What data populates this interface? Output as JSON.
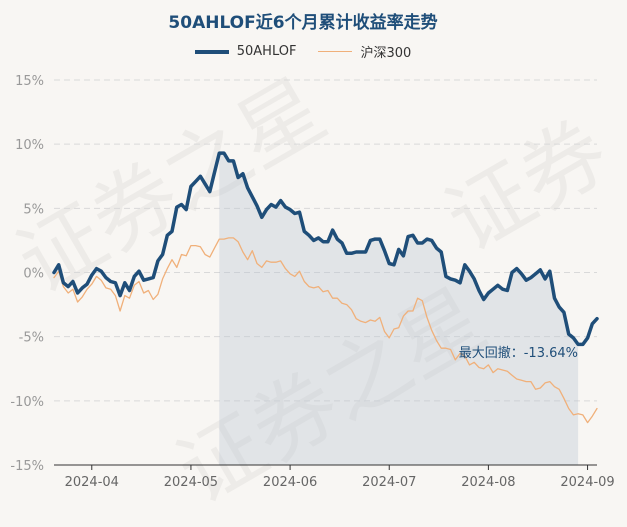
{
  "chart_data": {
    "type": "line",
    "title": "50AHLOF近6个月累计收益率走势",
    "xlabel": "",
    "ylabel": "",
    "ylim": [
      -15,
      15
    ],
    "yticks": [
      "15%",
      "10%",
      "5%",
      "0%",
      "-5%",
      "-10%",
      "-15%"
    ],
    "yticks_values": [
      15,
      10,
      5,
      0,
      -5,
      -10,
      -15
    ],
    "xticks": [
      "2024-04",
      "2024-05",
      "2024-06",
      "2024-07",
      "2024-08",
      "2024-09"
    ],
    "xticks_index": [
      8,
      29,
      50,
      71,
      92,
      113
    ],
    "grid": true,
    "legend": "top-center",
    "annotation": "最大回撤：-13.64%",
    "series": [
      {
        "name": "50AHLOF",
        "color": "#1f4e79",
        "values": [
          0.0,
          0.6,
          -0.8,
          -1.1,
          -0.7,
          -1.6,
          -1.2,
          -0.9,
          -0.2,
          0.3,
          0.1,
          -0.4,
          -0.7,
          -0.8,
          -1.8,
          -0.8,
          -1.4,
          -0.3,
          0.1,
          -0.6,
          -0.5,
          -0.4,
          0.9,
          1.4,
          2.9,
          3.2,
          5.1,
          5.3,
          4.9,
          6.7,
          7.1,
          7.5,
          6.9,
          6.3,
          7.8,
          9.3,
          9.3,
          8.7,
          8.7,
          7.4,
          7.7,
          6.6,
          5.9,
          5.2,
          4.3,
          4.9,
          5.3,
          5.1,
          5.6,
          5.1,
          4.9,
          4.6,
          4.7,
          3.2,
          2.9,
          2.5,
          2.7,
          2.4,
          2.4,
          3.3,
          2.6,
          2.3,
          1.5,
          1.5,
          1.6,
          1.6,
          1.6,
          2.5,
          2.6,
          2.6,
          1.7,
          0.7,
          0.6,
          1.8,
          1.3,
          2.8,
          2.9,
          2.3,
          2.3,
          2.6,
          2.5,
          1.9,
          1.6,
          -0.3,
          -0.5,
          -0.6,
          -0.8,
          0.6,
          0.1,
          -0.5,
          -1.4,
          -2.1,
          -1.6,
          -1.3,
          -1.0,
          -1.3,
          -1.4,
          0.0,
          0.3,
          -0.1,
          -0.6,
          -0.4,
          -0.1,
          0.2,
          -0.5,
          0.1,
          -2.0,
          -2.7,
          -3.1,
          -4.8,
          -5.1,
          -5.6,
          -5.6,
          -5.1,
          -4.0,
          -3.6
        ]
      },
      {
        "name": "沪深300",
        "color": "#f0b07a",
        "values": [
          -0.4,
          0.1,
          -1.1,
          -1.6,
          -1.3,
          -2.3,
          -1.9,
          -1.3,
          -0.9,
          -0.3,
          -0.6,
          -1.2,
          -1.3,
          -1.8,
          -3.0,
          -1.8,
          -2.0,
          -1.0,
          -0.7,
          -1.6,
          -1.4,
          -2.1,
          -1.7,
          -0.5,
          0.3,
          1.0,
          0.4,
          1.4,
          1.3,
          2.1,
          2.1,
          2.0,
          1.4,
          1.2,
          1.9,
          2.6,
          2.6,
          2.7,
          2.7,
          2.4,
          1.6,
          1.0,
          1.7,
          0.7,
          0.4,
          0.9,
          0.8,
          0.8,
          0.9,
          0.3,
          -0.1,
          -0.3,
          0.1,
          -0.7,
          -1.1,
          -1.2,
          -1.1,
          -1.5,
          -1.4,
          -2.0,
          -2.0,
          -2.4,
          -2.5,
          -2.9,
          -3.6,
          -3.8,
          -3.9,
          -3.7,
          -3.8,
          -3.5,
          -4.6,
          -5.1,
          -4.4,
          -4.3,
          -3.4,
          -3.0,
          -3.0,
          -2.0,
          -2.2,
          -3.5,
          -4.5,
          -5.3,
          -5.9,
          -5.9,
          -6.0,
          -6.8,
          -6.3,
          -6.5,
          -7.2,
          -7.0,
          -7.4,
          -7.5,
          -7.2,
          -7.8,
          -7.5,
          -7.6,
          -7.7,
          -8.0,
          -8.3,
          -8.4,
          -8.5,
          -8.5,
          -9.1,
          -9.0,
          -8.6,
          -8.5,
          -8.9,
          -9.1,
          -9.8,
          -10.6,
          -11.1,
          -11.0,
          -11.1,
          -11.7,
          -11.2,
          -10.6
        ]
      }
    ]
  }
}
